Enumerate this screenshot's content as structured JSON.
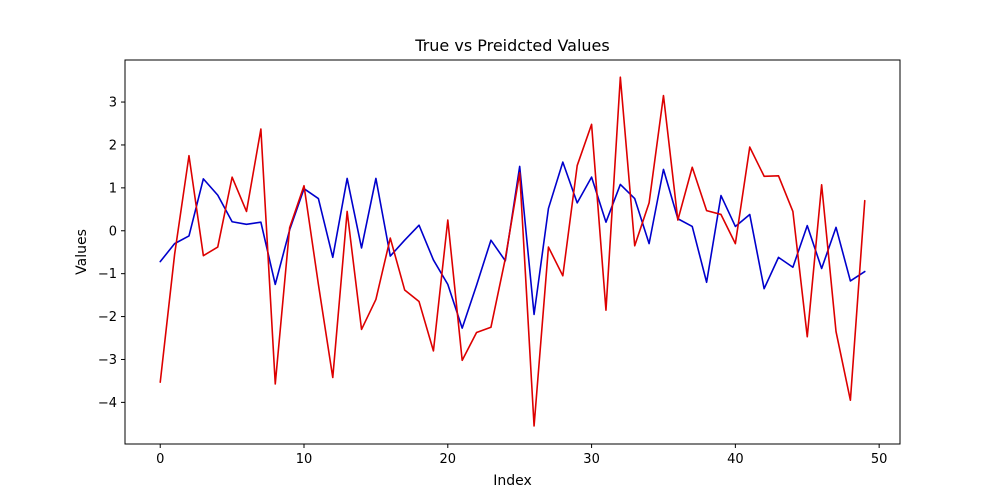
{
  "chart_data": {
    "type": "line",
    "title": "True vs Preidcted Values",
    "xlabel": "Index",
    "ylabel": "Values",
    "xlim": [
      -2.45,
      51.45
    ],
    "ylim": [
      -4.97,
      3.98
    ],
    "xticks": [
      0,
      10,
      20,
      30,
      40,
      50
    ],
    "yticks": [
      -4,
      -3,
      -2,
      -1,
      0,
      1,
      2,
      3
    ],
    "grid": false,
    "x": [
      0,
      1,
      2,
      3,
      4,
      5,
      6,
      7,
      8,
      9,
      10,
      11,
      12,
      13,
      14,
      15,
      16,
      17,
      18,
      19,
      20,
      21,
      22,
      23,
      24,
      25,
      26,
      27,
      28,
      29,
      30,
      31,
      32,
      33,
      34,
      35,
      36,
      37,
      38,
      39,
      40,
      41,
      42,
      43,
      44,
      45,
      46,
      47,
      48,
      49
    ],
    "series": [
      {
        "color": "#0000cc",
        "values": [
          -0.72,
          -0.3,
          -0.12,
          1.21,
          0.83,
          0.21,
          0.15,
          0.2,
          -1.25,
          0.02,
          0.98,
          0.75,
          -0.62,
          1.22,
          -0.4,
          1.22,
          -0.59,
          -0.22,
          0.13,
          -0.68,
          -1.25,
          -2.27,
          -1.27,
          -0.22,
          -0.7,
          1.5,
          -1.95,
          0.52,
          1.6,
          0.65,
          1.25,
          0.2,
          1.08,
          0.75,
          -0.3,
          1.43,
          0.28,
          0.1,
          -1.2,
          0.82,
          0.1,
          0.38,
          -1.35,
          -0.62,
          -0.85,
          0.12,
          -0.88,
          0.08,
          -1.17,
          -0.95
        ]
      },
      {
        "color": "#dd0000",
        "values": [
          -3.53,
          -0.55,
          1.75,
          -0.58,
          -0.38,
          1.25,
          0.45,
          2.37,
          -3.57,
          0.07,
          1.05,
          -1.25,
          -3.42,
          0.45,
          -2.3,
          -1.6,
          -0.17,
          -1.38,
          -1.65,
          -2.8,
          0.25,
          -3.02,
          -2.37,
          -2.25,
          -0.65,
          1.35,
          -4.55,
          -0.38,
          -1.05,
          1.52,
          2.48,
          -1.85,
          3.58,
          -0.35,
          0.65,
          3.15,
          0.25,
          1.48,
          0.47,
          0.38,
          -0.3,
          1.95,
          1.27,
          1.28,
          0.45,
          -2.47,
          1.07,
          -2.35,
          -3.95,
          0.7
        ]
      }
    ]
  }
}
